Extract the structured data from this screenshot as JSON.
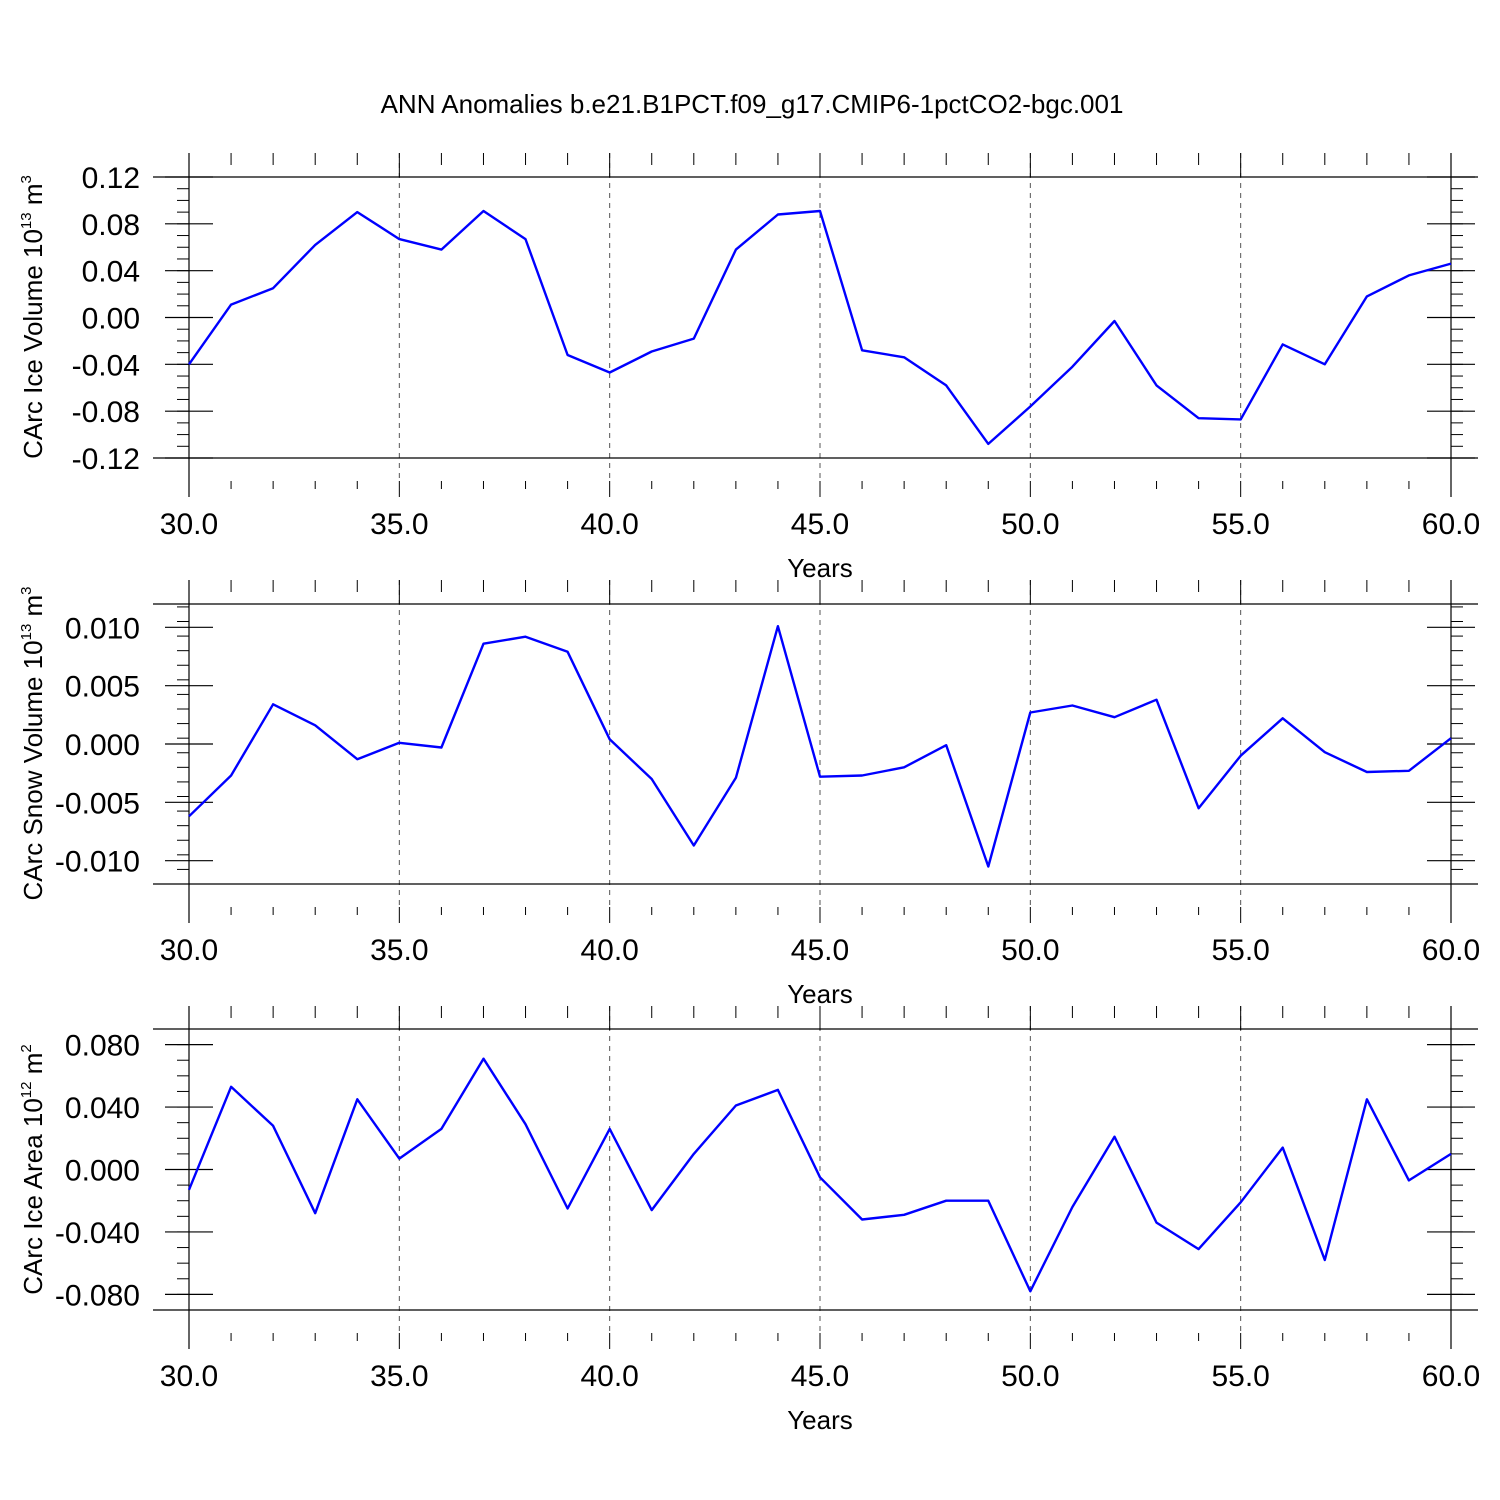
{
  "title": "ANN Anomalies b.e21.B1PCT.f09_g17.CMIP6-1pctCO2-bgc.001",
  "colors": {
    "series": "#0000ff",
    "axis": "#000000",
    "grid": "#555555"
  },
  "chart_data": [
    {
      "type": "line",
      "ylabel": {
        "main": "CArc Ice Volume 10",
        "exp": "13",
        "unit": " m",
        "unit_exp": "3"
      },
      "xlabel": "Years",
      "xlim": [
        30,
        60
      ],
      "ylim": [
        -0.12,
        0.12
      ],
      "xticks": [
        30,
        35,
        40,
        45,
        50,
        55,
        60
      ],
      "xtick_labels": [
        "30.0",
        "35.0",
        "40.0",
        "45.0",
        "50.0",
        "55.0",
        "60.0"
      ],
      "yticks": [
        -0.12,
        -0.08,
        -0.04,
        0.0,
        0.04,
        0.08,
        0.12
      ],
      "ytick_labels": [
        "-0.12",
        "-0.08",
        "-0.04",
        "0.00",
        "0.04",
        "0.08",
        "0.12"
      ],
      "grid": "dashed vertical at major x ticks",
      "x": [
        30,
        31,
        32,
        33,
        34,
        35,
        36,
        37,
        38,
        39,
        40,
        41,
        42,
        43,
        44,
        45,
        46,
        47,
        48,
        49,
        50,
        51,
        52,
        53,
        54,
        55,
        56,
        57,
        58,
        59,
        60
      ],
      "y": [
        -0.04,
        0.011,
        0.025,
        0.062,
        0.09,
        0.067,
        0.058,
        0.091,
        0.067,
        -0.032,
        -0.047,
        -0.029,
        -0.018,
        0.058,
        0.088,
        0.091,
        -0.028,
        -0.034,
        -0.058,
        -0.108,
        -0.076,
        -0.042,
        -0.003,
        -0.058,
        -0.086,
        -0.087,
        -0.023,
        -0.04,
        0.018,
        0.036,
        0.046
      ]
    },
    {
      "type": "line",
      "ylabel": {
        "main": "CArc Snow Volume 10",
        "exp": "13",
        "unit": " m",
        "unit_exp": "3"
      },
      "xlabel": "Years",
      "xlim": [
        30,
        60
      ],
      "ylim": [
        -0.012,
        0.012
      ],
      "xticks": [
        30,
        35,
        40,
        45,
        50,
        55,
        60
      ],
      "xtick_labels": [
        "30.0",
        "35.0",
        "40.0",
        "45.0",
        "50.0",
        "55.0",
        "60.0"
      ],
      "yticks": [
        -0.01,
        -0.005,
        0.0,
        0.005,
        0.01
      ],
      "ytick_labels": [
        "-0.010",
        "-0.005",
        "0.000",
        "0.005",
        "0.010"
      ],
      "grid": "dashed vertical at major x ticks",
      "x": [
        30,
        31,
        32,
        33,
        34,
        35,
        36,
        37,
        38,
        39,
        40,
        41,
        42,
        43,
        44,
        45,
        46,
        47,
        48,
        49,
        50,
        51,
        52,
        53,
        54,
        55,
        56,
        57,
        58,
        59,
        60
      ],
      "y": [
        -0.0062,
        -0.0027,
        0.0034,
        0.0016,
        -0.0013,
        0.0001,
        -0.0003,
        0.0086,
        0.0092,
        0.0079,
        0.0004,
        -0.003,
        -0.0087,
        -0.0029,
        0.0101,
        -0.0028,
        -0.0027,
        -0.002,
        -0.0001,
        -0.0105,
        0.0027,
        0.0033,
        0.0023,
        0.0038,
        -0.0055,
        -0.001,
        0.0022,
        -0.0007,
        -0.0024,
        -0.0023,
        0.0005
      ]
    },
    {
      "type": "line",
      "ylabel": {
        "main": "CArc Ice Area 10",
        "exp": "12",
        "unit": " m",
        "unit_exp": "2"
      },
      "xlabel": "Years",
      "xlim": [
        30,
        60
      ],
      "ylim": [
        -0.09,
        0.09
      ],
      "xticks": [
        30,
        35,
        40,
        45,
        50,
        55,
        60
      ],
      "xtick_labels": [
        "30.0",
        "35.0",
        "40.0",
        "45.0",
        "50.0",
        "55.0",
        "60.0"
      ],
      "yticks": [
        -0.08,
        -0.04,
        0.0,
        0.04,
        0.08
      ],
      "ytick_labels": [
        "-0.080",
        "-0.040",
        "0.000",
        "0.040",
        "0.080"
      ],
      "grid": "dashed vertical at major x ticks",
      "x": [
        30,
        31,
        32,
        33,
        34,
        35,
        36,
        37,
        38,
        39,
        40,
        41,
        42,
        43,
        44,
        45,
        46,
        47,
        48,
        49,
        50,
        51,
        52,
        53,
        54,
        55,
        56,
        57,
        58,
        59,
        60
      ],
      "y": [
        -0.013,
        0.053,
        0.028,
        -0.028,
        0.045,
        0.007,
        0.026,
        0.071,
        0.029,
        -0.025,
        0.026,
        -0.026,
        0.01,
        0.041,
        0.051,
        -0.005,
        -0.032,
        -0.029,
        -0.02,
        -0.02,
        -0.078,
        -0.024,
        0.021,
        -0.034,
        -0.051,
        -0.021,
        0.014,
        -0.058,
        0.045,
        -0.007,
        0.01
      ]
    }
  ]
}
